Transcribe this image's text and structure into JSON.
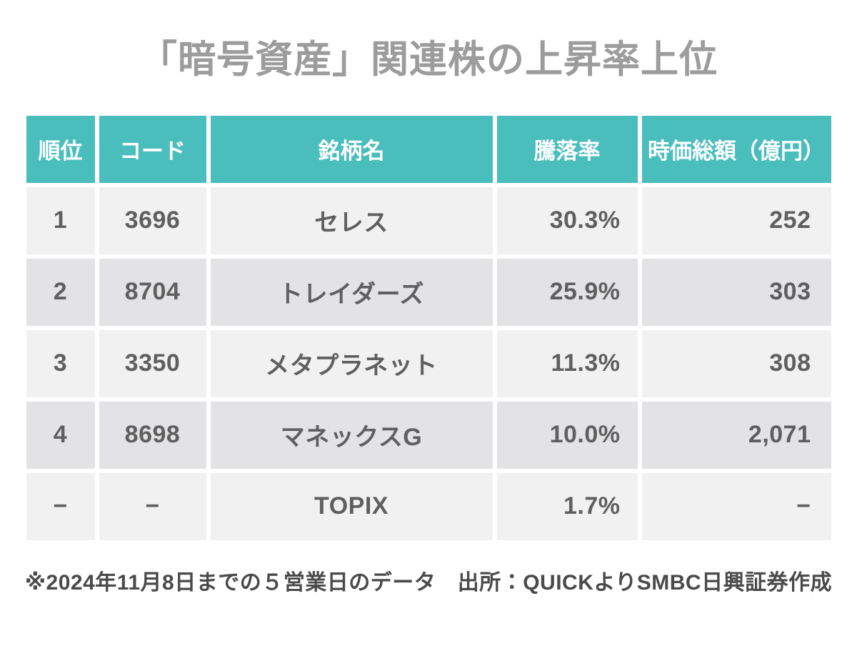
{
  "chart_data": {
    "type": "table",
    "title": "「暗号資産」関連株の上昇率上位",
    "columns": [
      "順位",
      "コード",
      "銘柄名",
      "騰落率",
      "時価総額（億円）"
    ],
    "rows": [
      [
        "1",
        "3696",
        "セレス",
        "30.3%",
        "252"
      ],
      [
        "2",
        "8704",
        "トレイダーズ",
        "25.9%",
        "303"
      ],
      [
        "3",
        "3350",
        "メタプラネット",
        "11.3%",
        "308"
      ],
      [
        "4",
        "8698",
        "マネックスG",
        "10.0%",
        "2,071"
      ],
      [
        "−",
        "−",
        "TOPIX",
        "1.7%",
        "−"
      ]
    ],
    "note": "※2024年11月8日までの５営業日のデータ　出所：QUICKよりSMBC日興証券作成",
    "layout": {
      "zebra_striping": true,
      "change_column_align": "right",
      "market_cap_column_align": "right"
    }
  },
  "colors": {
    "header_background": "#4abdbd",
    "header_text": "#ffffff",
    "row_light": "#f1f1f2",
    "row_dark": "#e3e3e5",
    "body_text": "#5f5f5f",
    "title_text": "#9c9c9c",
    "note_text": "#4a4a4a",
    "page_background": "#ffffff"
  }
}
